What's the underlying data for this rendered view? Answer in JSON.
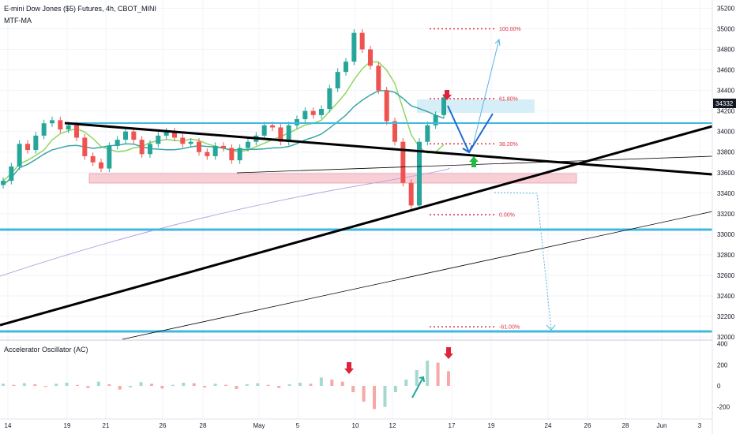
{
  "header": {
    "title": "E-mini Dow Jones ($5) Futures, 4h, CBOT_MINI",
    "indicator": "MTF-MA"
  },
  "oscillator": {
    "title": "Accelerator Oscillator (AC)"
  },
  "colors": {
    "up": "#26a69a",
    "down": "#ef5350",
    "up_osc": "#a6d8d2",
    "down_osc": "#f7a9a7",
    "cyan_line": "#40b8e0",
    "trend_black": "#000000",
    "fib": "#e03040",
    "arrow_blue": "#1e6bd0",
    "arrow_green": "#22bb44",
    "arrow_red": "#e0223a",
    "ma_fast": "#8fd660",
    "ma_slow": "#3aa6a6",
    "ma_long": "#b8a8e0",
    "zone": "#f9cfd6",
    "zone_top": "#d6eef7",
    "price_badge": "#131722"
  },
  "chart_data": [
    {
      "type": "line",
      "title": "E-mini Dow Jones ($5) Futures, 4h, CBOT_MINI",
      "x_ticks": [
        "14",
        "19",
        "21",
        "26",
        "28",
        "May",
        "5",
        "10",
        "12",
        "17",
        "19",
        "24",
        "26",
        "28",
        "Jun",
        "3"
      ],
      "y_ticks": [
        35200,
        35000,
        34800,
        34600,
        34400,
        34200,
        34000,
        33800,
        33600,
        33400,
        33200,
        33000,
        32800,
        32600,
        32400,
        32200,
        32000
      ],
      "ylim": [
        31970,
        35280
      ],
      "last_price": "34332",
      "series": [
        {
          "values": [
            33520,
            33660,
            33880,
            33820,
            33960,
            34080,
            34110,
            34020,
            34060,
            33940,
            33760,
            33700,
            33640,
            33860,
            33920,
            34000,
            33920,
            33780,
            33880,
            33960,
            34000,
            33940,
            33880,
            33900,
            33800,
            33760,
            33860,
            33840,
            33720,
            33840,
            33900,
            33960,
            34060,
            34040,
            33900,
            34060,
            34120,
            34200,
            34160,
            34220,
            34420,
            34580,
            34680,
            34960,
            34800,
            34640,
            34400,
            34100,
            33900,
            33500,
            33280,
            33900,
            34060,
            34160,
            34332
          ]
        }
      ],
      "fib_levels": [
        {
          "label": "100.00%",
          "value": 35000
        },
        {
          "label": "61.80%",
          "value": 34320
        },
        {
          "label": "38.20%",
          "value": 33880
        },
        {
          "label": "0.00%",
          "value": 33190
        },
        {
          "label": "-61.00%",
          "value": 32100
        }
      ]
    },
    {
      "type": "bar",
      "title": "Accelerator Oscillator (AC)",
      "y_ticks": [
        400,
        200,
        0,
        -200
      ],
      "ylim": [
        -300,
        420
      ],
      "values": [
        20,
        10,
        25,
        15,
        -10,
        20,
        30,
        10,
        -20,
        40,
        15,
        -35,
        -15,
        35,
        20,
        -25,
        10,
        30,
        25,
        -15,
        20,
        10,
        -30,
        15,
        25,
        10,
        -20,
        15,
        30,
        20,
        80,
        60,
        40,
        -60,
        -150,
        -220,
        -200,
        -60,
        60,
        150,
        240,
        220,
        140
      ]
    }
  ]
}
